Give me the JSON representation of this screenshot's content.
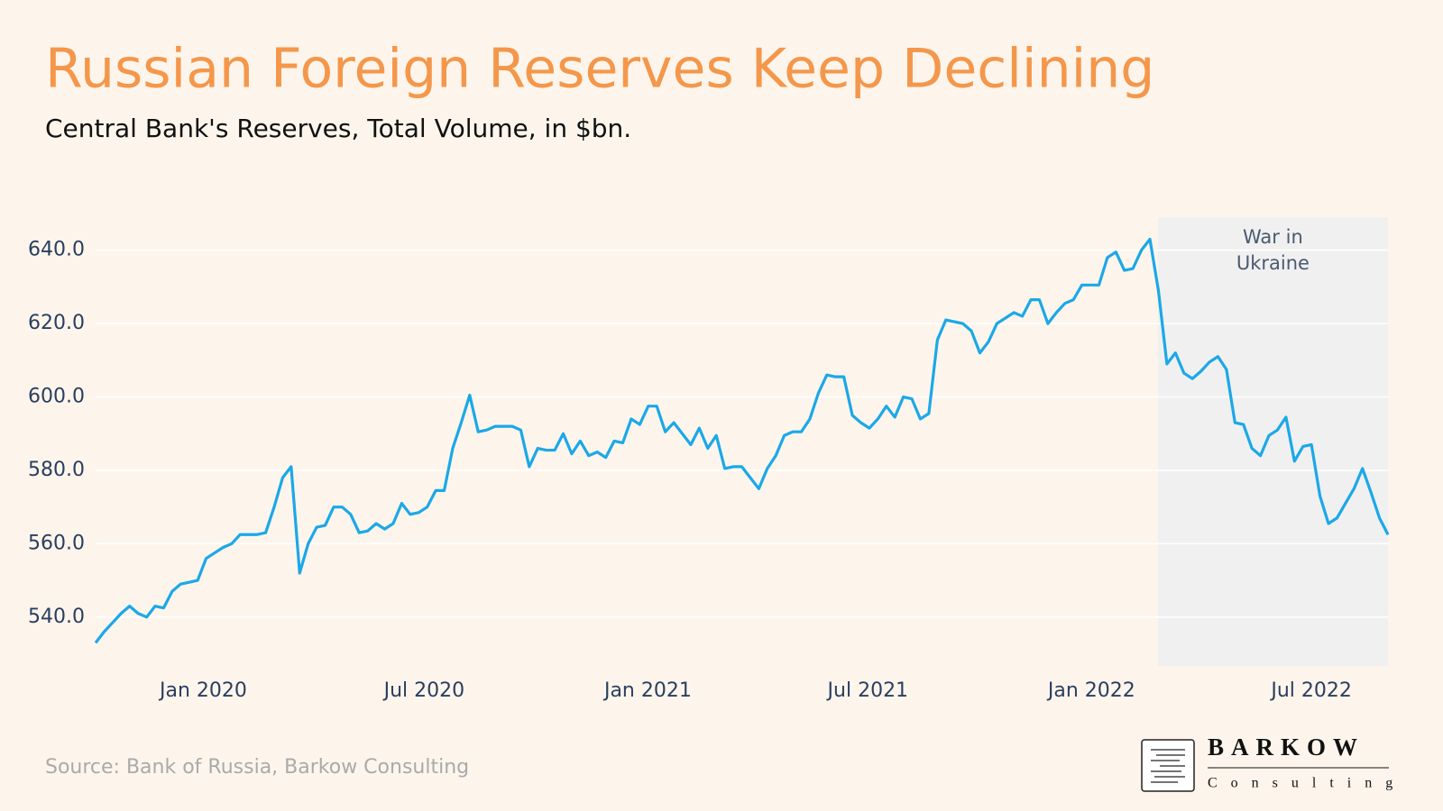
{
  "chart_data": {
    "type": "line",
    "title": "Russian Foreign Reserves Keep Declining",
    "subtitle": "Central Bank's Reserves, Total Volume, in $bn.",
    "source": "Source: Bank of Russia, Barkow Consulting",
    "logo": {
      "name": "BARKOW",
      "sub": "Consulting"
    },
    "series": [
      {
        "color": "#1ba8e8",
        "values": [
          533,
          536,
          538.5,
          541,
          543,
          541,
          540,
          543,
          542.5,
          547,
          549,
          549.5,
          550,
          556,
          557.5,
          559,
          560,
          562.5,
          562.5,
          562.5,
          563,
          570,
          578,
          581,
          552,
          560,
          564.5,
          565,
          570,
          570,
          568,
          563,
          563.5,
          565.5,
          564,
          565.5,
          571,
          568,
          568.5,
          570,
          574.5,
          574.5,
          586,
          593,
          600.5,
          590.5,
          591,
          592,
          592,
          592,
          591,
          581,
          586,
          585.5,
          585.5,
          590,
          584.5,
          588,
          584,
          585,
          583.5,
          588,
          587.5,
          594,
          592.5,
          597.5,
          597.5,
          590.5,
          593,
          590,
          587,
          591.5,
          586,
          589.5,
          580.5,
          581,
          581,
          578,
          575,
          580.5,
          584,
          589.5,
          590.5,
          590.5,
          594,
          601,
          606,
          605.5,
          605.5,
          595,
          593,
          591.5,
          594,
          597.5,
          594.5,
          600,
          599.5,
          594,
          595.5,
          615.5,
          621,
          620.5,
          620,
          618,
          612,
          615,
          620,
          621.5,
          623,
          622,
          626.5,
          626.5,
          620,
          623,
          625.5,
          626.5,
          630.5,
          630.5,
          630.5,
          638,
          639.5,
          634.5,
          635,
          640,
          643,
          629,
          609,
          612,
          606.5,
          605,
          607,
          609.5,
          611,
          607.5,
          593,
          592.5,
          586,
          584,
          589.5,
          591,
          594.5,
          582.5,
          586.5,
          587,
          573,
          565.5,
          567,
          571,
          575,
          580.5,
          574,
          567,
          562.5
        ]
      }
    ],
    "xlim": [
      0,
      152
    ],
    "xticks": [
      {
        "value": 12.67,
        "label": "Jan 2020"
      },
      {
        "value": 38.65,
        "label": "Jul 2020"
      },
      {
        "value": 64.96,
        "label": "Jan 2021"
      },
      {
        "value": 90.83,
        "label": "Jul 2021"
      },
      {
        "value": 117.14,
        "label": "Jan 2022"
      },
      {
        "value": 143.0,
        "label": "Jul 2022"
      }
    ],
    "ylim": [
      526.7,
      649
    ],
    "yticks": [
      {
        "value": 540,
        "label": "540.0"
      },
      {
        "value": 560,
        "label": "560.0"
      },
      {
        "value": 580,
        "label": "580.0"
      },
      {
        "value": 600,
        "label": "600.0"
      },
      {
        "value": 620,
        "label": "620.0"
      },
      {
        "value": 640,
        "label": "640.0"
      }
    ],
    "grid": true,
    "shade": {
      "x": [
        124.93,
        152
      ],
      "label": [
        "War in",
        "Ukraine"
      ],
      "color": "#f0f0f0"
    }
  }
}
